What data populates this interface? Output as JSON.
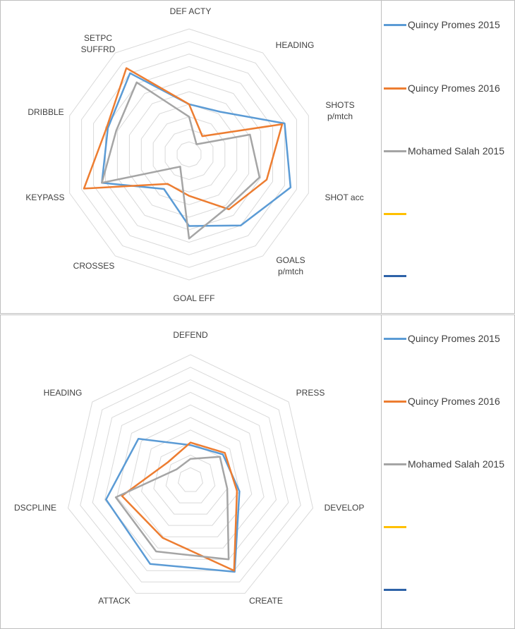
{
  "colors": {
    "grid": "#d9d9d9",
    "frame": "#bfbfbf",
    "label": "#404040"
  },
  "chart_data": [
    {
      "type": "radar",
      "title": "",
      "axes": [
        "DEF ACTY",
        "HEADING",
        "SHOTS\np/mtch",
        "SHOT acc",
        "GOALS\np/mtch",
        "GOAL EFF",
        "CROSSES",
        "KEYPASS",
        "DRIBBLE",
        "SETPC\nSUFFRD"
      ],
      "rlim": [
        0,
        10
      ],
      "grid_levels": 10,
      "series": [
        {
          "name": "Quincy Promes 2015",
          "color": "#5b9bd5",
          "values": [
            4.0,
            4.2,
            8.0,
            8.5,
            7.0,
            5.7,
            3.4,
            7.3,
            6.8,
            8.0
          ]
        },
        {
          "name": "Quincy Promes 2016",
          "color": "#ed7d31",
          "values": [
            4.0,
            1.8,
            7.8,
            6.5,
            5.4,
            3.3,
            2.9,
            8.8,
            6.9,
            8.5
          ]
        },
        {
          "name": "Mohamed Salah 2015",
          "color": "#a5a5a5",
          "values": [
            3.0,
            1.0,
            5.1,
            5.9,
            5.2,
            6.7,
            1.2,
            7.3,
            6.1,
            7.1
          ]
        }
      ],
      "legend": [
        {
          "name": "Quincy Promes 2015",
          "color": "#5b9bd5"
        },
        {
          "name": "Quincy Promes 2016",
          "color": "#ed7d31"
        },
        {
          "name": "Mohamed Salah 2015",
          "color": "#a5a5a5"
        },
        {
          "name": "",
          "color": "#ffc000"
        },
        {
          "name": "",
          "color": "#2e63a8"
        }
      ],
      "legend_position": "right"
    },
    {
      "type": "radar",
      "title": "",
      "axes": [
        "DEFEND",
        "PRESS",
        "DEVELOP",
        "CREATE",
        "ATTACK",
        "DSCPLINE",
        "HEADING"
      ],
      "rlim": [
        0,
        10
      ],
      "grid_levels": 10,
      "series": [
        {
          "name": "Quincy Promes 2015",
          "color": "#5b9bd5",
          "values": [
            2.8,
            3.3,
            4.0,
            8.1,
            7.4,
            6.9,
            5.3
          ]
        },
        {
          "name": "Quincy Promes 2016",
          "color": "#ed7d31",
          "values": [
            3.0,
            3.5,
            3.8,
            8.0,
            5.1,
            5.6,
            2.3
          ]
        },
        {
          "name": "Mohamed Salah 2015",
          "color": "#a5a5a5",
          "values": [
            1.7,
            3.0,
            3.0,
            7.0,
            6.3,
            6.1,
            1.4
          ]
        }
      ],
      "legend": [
        {
          "name": "Quincy Promes 2015",
          "color": "#5b9bd5"
        },
        {
          "name": "Quincy Promes 2016",
          "color": "#ed7d31"
        },
        {
          "name": "Mohamed Salah 2015",
          "color": "#a5a5a5"
        },
        {
          "name": "",
          "color": "#ffc000"
        },
        {
          "name": "",
          "color": "#2e63a8"
        }
      ],
      "legend_position": "right"
    }
  ]
}
